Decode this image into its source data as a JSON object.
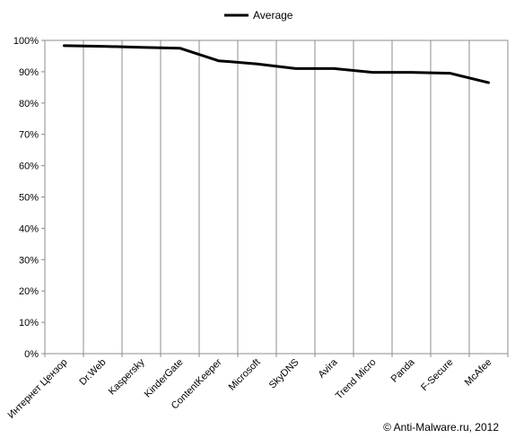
{
  "chart_data": {
    "type": "line",
    "categories": [
      "Интернет Цензор",
      "Dr.Web",
      "Kaspersky",
      "KinderGate",
      "ContentKeeper",
      "Microsoft",
      "SkyDNS",
      "Avira",
      "Trend Micro",
      "Panda",
      "F-Secure",
      "McAfee"
    ],
    "series": [
      {
        "name": "Average",
        "values": [
          98.3,
          98.1,
          97.8,
          97.5,
          93.5,
          92.5,
          91.0,
          91.0,
          89.8,
          89.8,
          89.5,
          86.5
        ],
        "color": "#000000"
      }
    ],
    "ylim": [
      0,
      100
    ],
    "y_ticks": [
      0,
      10,
      20,
      30,
      40,
      50,
      60,
      70,
      80,
      90,
      100
    ],
    "y_tick_labels": [
      "0%",
      "10%",
      "20%",
      "30%",
      "40%",
      "50%",
      "60%",
      "70%",
      "80%",
      "90%",
      "100%"
    ],
    "grid": "vertical",
    "legend_position": "top-center"
  },
  "copyright": "© Anti-Malware.ru,  2012"
}
